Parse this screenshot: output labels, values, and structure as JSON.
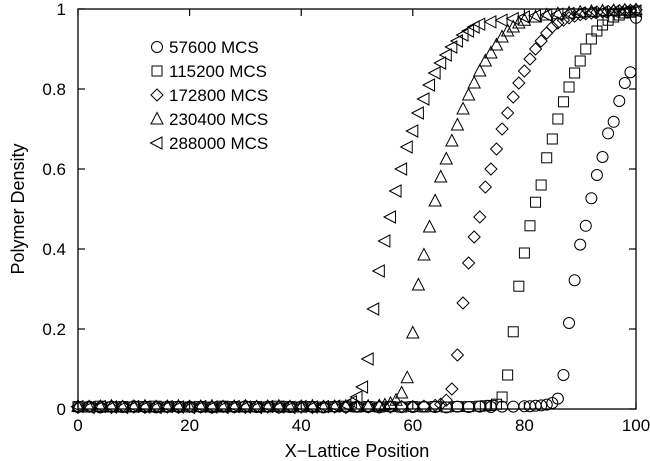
{
  "chart_data": {
    "type": "scatter",
    "title": "",
    "xlabel": "X−Lattice Position",
    "ylabel": "Polymer Density",
    "xlim": [
      0,
      100
    ],
    "ylim": [
      0,
      1
    ],
    "x_ticks": [
      0,
      20,
      40,
      60,
      80,
      100
    ],
    "y_ticks": [
      0,
      0.2,
      0.4,
      0.6,
      0.8,
      1
    ],
    "x_tick_labels": [
      "0",
      "20",
      "40",
      "60",
      "80",
      "100"
    ],
    "y_tick_labels": [
      "0",
      "0.2",
      "0.4",
      "0.6",
      "0.8",
      "1"
    ],
    "grid": false,
    "legend_position": "top-left",
    "series": [
      {
        "name": "57600 MCS",
        "marker": "circle",
        "color": "#000000",
        "x": [
          0,
          2,
          4,
          6,
          8,
          10,
          12,
          14,
          16,
          18,
          20,
          22,
          24,
          26,
          28,
          30,
          32,
          34,
          36,
          38,
          40,
          42,
          44,
          46,
          48,
          50,
          52,
          54,
          56,
          58,
          60,
          62,
          64,
          66,
          68,
          70,
          72,
          74,
          76,
          78,
          80,
          81,
          82,
          83,
          84,
          85,
          86,
          87,
          88,
          89,
          90,
          91,
          92,
          93,
          94,
          95,
          96,
          97,
          98,
          99,
          100
        ],
        "y": [
          0.005,
          0.006,
          0.004,
          0.006,
          0.005,
          0.007,
          0.005,
          0.004,
          0.006,
          0.005,
          0.006,
          0.005,
          0.004,
          0.006,
          0.005,
          0.007,
          0.005,
          0.006,
          0.004,
          0.005,
          0.006,
          0.005,
          0.004,
          0.006,
          0.005,
          0.006,
          0.005,
          0.004,
          0.006,
          0.005,
          0.005,
          0.006,
          0.005,
          0.004,
          0.006,
          0.005,
          0.006,
          0.005,
          0.006,
          0.006,
          0.007,
          0.007,
          0.008,
          0.009,
          0.011,
          0.015,
          0.026,
          0.085,
          0.215,
          0.322,
          0.411,
          0.458,
          0.527,
          0.585,
          0.63,
          0.689,
          0.718,
          0.77,
          0.815,
          0.842,
          0.978
        ]
      },
      {
        "name": "115200 MCS",
        "marker": "square",
        "color": "#000000",
        "x": [
          0,
          2,
          4,
          6,
          8,
          10,
          12,
          14,
          16,
          18,
          20,
          22,
          24,
          26,
          28,
          30,
          32,
          34,
          36,
          38,
          40,
          42,
          44,
          46,
          48,
          50,
          52,
          54,
          56,
          58,
          60,
          62,
          64,
          66,
          68,
          70,
          72,
          73,
          74,
          75,
          76,
          77,
          78,
          79,
          80,
          81,
          82,
          83,
          84,
          85,
          86,
          87,
          88,
          89,
          90,
          91,
          92,
          93,
          94,
          95,
          96,
          97,
          98,
          99,
          100
        ],
        "y": [
          0.006,
          0.005,
          0.007,
          0.005,
          0.006,
          0.005,
          0.006,
          0.007,
          0.005,
          0.006,
          0.005,
          0.006,
          0.005,
          0.007,
          0.006,
          0.005,
          0.006,
          0.005,
          0.007,
          0.006,
          0.005,
          0.006,
          0.005,
          0.006,
          0.007,
          0.005,
          0.006,
          0.005,
          0.006,
          0.005,
          0.006,
          0.005,
          0.006,
          0.005,
          0.006,
          0.006,
          0.007,
          0.008,
          0.009,
          0.012,
          0.03,
          0.085,
          0.193,
          0.307,
          0.39,
          0.458,
          0.517,
          0.56,
          0.628,
          0.675,
          0.725,
          0.768,
          0.805,
          0.84,
          0.87,
          0.9,
          0.925,
          0.945,
          0.96,
          0.972,
          0.98,
          0.985,
          0.99,
          0.992,
          0.995
        ]
      },
      {
        "name": "172800 MCS",
        "marker": "diamond",
        "color": "#000000",
        "x": [
          0,
          2,
          4,
          6,
          8,
          10,
          12,
          14,
          16,
          18,
          20,
          22,
          24,
          26,
          28,
          30,
          32,
          34,
          36,
          38,
          40,
          42,
          44,
          46,
          48,
          50,
          52,
          54,
          56,
          58,
          60,
          62,
          64,
          65,
          66,
          67,
          68,
          69,
          70,
          71,
          72,
          73,
          74,
          75,
          76,
          77,
          78,
          79,
          80,
          81,
          82,
          83,
          84,
          85,
          86,
          87,
          88,
          89,
          90,
          91,
          92,
          93,
          94,
          95,
          96,
          97,
          98,
          99,
          100
        ],
        "y": [
          0.004,
          0.006,
          0.005,
          0.004,
          0.006,
          0.005,
          0.004,
          0.006,
          0.005,
          0.004,
          0.006,
          0.005,
          0.004,
          0.006,
          0.005,
          0.004,
          0.006,
          0.005,
          0.004,
          0.006,
          0.005,
          0.004,
          0.006,
          0.005,
          0.004,
          0.006,
          0.005,
          0.006,
          0.005,
          0.006,
          0.006,
          0.007,
          0.009,
          0.012,
          0.022,
          0.05,
          0.135,
          0.265,
          0.365,
          0.43,
          0.48,
          0.555,
          0.6,
          0.65,
          0.7,
          0.74,
          0.78,
          0.815,
          0.845,
          0.875,
          0.9,
          0.92,
          0.94,
          0.955,
          0.965,
          0.972,
          0.978,
          0.982,
          0.986,
          0.988,
          0.99,
          0.992,
          0.993,
          0.994,
          0.995,
          0.996,
          0.997,
          0.997,
          0.998
        ]
      },
      {
        "name": "230400 MCS",
        "marker": "triangle-up",
        "color": "#000000",
        "x": [
          0,
          2,
          4,
          6,
          8,
          10,
          12,
          14,
          16,
          18,
          20,
          22,
          24,
          26,
          28,
          30,
          32,
          34,
          36,
          38,
          40,
          42,
          44,
          46,
          48,
          50,
          52,
          54,
          55,
          56,
          57,
          58,
          59,
          60,
          61,
          62,
          63,
          64,
          65,
          66,
          67,
          68,
          69,
          70,
          71,
          72,
          73,
          74,
          75,
          76,
          77,
          78,
          79,
          80,
          82,
          84,
          86,
          88,
          90,
          92,
          94,
          96,
          98,
          100
        ],
        "y": [
          0.007,
          0.005,
          0.006,
          0.007,
          0.005,
          0.006,
          0.007,
          0.005,
          0.006,
          0.007,
          0.005,
          0.006,
          0.007,
          0.005,
          0.006,
          0.007,
          0.005,
          0.006,
          0.007,
          0.005,
          0.006,
          0.007,
          0.005,
          0.006,
          0.007,
          0.006,
          0.007,
          0.008,
          0.01,
          0.014,
          0.022,
          0.04,
          0.078,
          0.19,
          0.31,
          0.385,
          0.455,
          0.52,
          0.58,
          0.625,
          0.67,
          0.71,
          0.75,
          0.785,
          0.815,
          0.845,
          0.87,
          0.89,
          0.91,
          0.93,
          0.945,
          0.955,
          0.965,
          0.972,
          0.98,
          0.985,
          0.988,
          0.99,
          0.992,
          0.994,
          0.995,
          0.996,
          0.997,
          0.998
        ]
      },
      {
        "name": "288000 MCS",
        "marker": "triangle-left",
        "color": "#000000",
        "x": [
          0,
          2,
          4,
          6,
          8,
          10,
          12,
          14,
          16,
          18,
          20,
          22,
          24,
          26,
          28,
          30,
          32,
          34,
          36,
          38,
          40,
          42,
          44,
          46,
          48,
          49,
          50,
          51,
          52,
          53,
          54,
          55,
          56,
          57,
          58,
          59,
          60,
          61,
          62,
          63,
          64,
          65,
          66,
          67,
          68,
          69,
          70,
          71,
          72,
          74,
          76,
          78,
          80,
          82,
          84,
          86,
          88,
          90,
          92,
          94,
          96,
          98,
          100
        ],
        "y": [
          0.006,
          0.004,
          0.006,
          0.005,
          0.004,
          0.006,
          0.005,
          0.004,
          0.006,
          0.005,
          0.004,
          0.006,
          0.005,
          0.004,
          0.006,
          0.005,
          0.004,
          0.006,
          0.005,
          0.004,
          0.006,
          0.005,
          0.006,
          0.007,
          0.01,
          0.018,
          0.03,
          0.055,
          0.125,
          0.25,
          0.345,
          0.42,
          0.48,
          0.545,
          0.6,
          0.655,
          0.695,
          0.74,
          0.775,
          0.81,
          0.84,
          0.865,
          0.885,
          0.905,
          0.92,
          0.935,
          0.945,
          0.955,
          0.962,
          0.968,
          0.972,
          0.976,
          0.98,
          0.983,
          0.985,
          0.987,
          0.989,
          0.99,
          0.991,
          0.992,
          0.993,
          0.994,
          0.995
        ]
      }
    ]
  }
}
